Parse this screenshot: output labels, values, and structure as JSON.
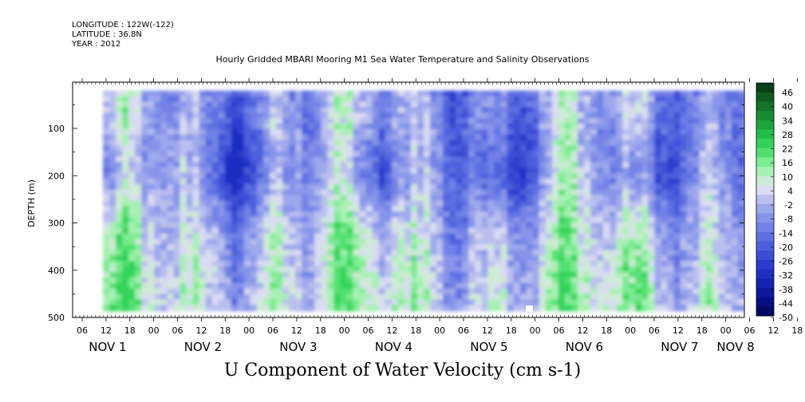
{
  "header": {
    "longitude": "LONGITUDE : 122W(-122)",
    "latitude": "LATITUDE : 36.8N",
    "year": "YEAR : 2012"
  },
  "chart_data": {
    "type": "heatmap",
    "title": "Hourly Gridded MBARI Mooring M1 Sea Water Temperature and Salinity Observations",
    "xlabel": "U Component of Water Velocity (cm s-1)",
    "ylabel": "DEPTH (m)",
    "y_reversed": true,
    "ylim": [
      500,
      10
    ],
    "y_ticks": [
      100,
      200,
      300,
      400,
      500
    ],
    "y_tick_labels": [
      "100",
      "200",
      "300",
      "400",
      "500"
    ],
    "x_hour_ticks": [
      "06",
      "12",
      "18",
      "00",
      "06",
      "12",
      "18",
      "00",
      "06",
      "12",
      "18",
      "00",
      "06",
      "12",
      "18",
      "00",
      "06",
      "12",
      "18",
      "00",
      "06",
      "12",
      "18",
      "00",
      "06",
      "12",
      "18",
      "00",
      "06",
      "12",
      "18",
      "00"
    ],
    "x_day_labels": [
      "NOV 1",
      "NOV 2",
      "NOV 3",
      "NOV 4",
      "NOV 5",
      "NOV 6",
      "NOV 7",
      "NOV 8"
    ],
    "colorbar": {
      "tick_labels": [
        "46",
        "40",
        "34",
        "28",
        "22",
        "16",
        "10",
        "4",
        "-2",
        "-8",
        "-14",
        "-20",
        "-26",
        "-32",
        "-38",
        "-44",
        "-50"
      ],
      "range": [
        -50,
        50
      ],
      "colors_top_to_bottom": [
        "#0b3d1a",
        "#0f5a22",
        "#13732b",
        "#178c33",
        "#1ba53c",
        "#22bf48",
        "#33d35a",
        "#52e070",
        "#7ceb92",
        "#a8f0b4",
        "#cfead6",
        "#d9dcf2",
        "#b9c0ee",
        "#9ea8ec",
        "#8794ea",
        "#7282e6",
        "#5f70e2",
        "#4d5fdc",
        "#3c4dd5",
        "#2d3ccd",
        "#1f2ec2",
        "#1522b2",
        "#0d189c",
        "#080f84",
        "#050a66"
      ]
    },
    "data_extent_x_days": [
      0.25,
      7.02
    ],
    "data_extent_y_m": [
      20,
      485
    ],
    "note_colors": {
      "negative": "#8ea0ee",
      "positive": "#4fe06a"
    }
  }
}
